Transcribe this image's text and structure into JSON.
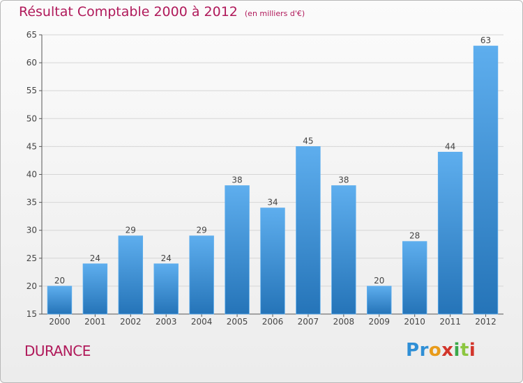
{
  "header": {
    "title": "Résultat Comptable 2000 à 2012",
    "unit": "(en milliers d'€)"
  },
  "commune": "DURANCE",
  "logo": {
    "text": "Proxiti",
    "letters": [
      {
        "ch": "P",
        "color": "#2f8fd6"
      },
      {
        "ch": "r",
        "color": "#2f8fd6"
      },
      {
        "ch": "o",
        "color": "#e89b1a"
      },
      {
        "ch": "x",
        "color": "#d2352b"
      },
      {
        "ch": "i",
        "color": "#3aa84a"
      },
      {
        "ch": "t",
        "color": "#8cc63f"
      },
      {
        "ch": "i",
        "color": "#d2352b"
      }
    ]
  },
  "colors": {
    "bar": "#3d93d9",
    "bar_light": "#5eaeee",
    "bar_dark": "#2574b8",
    "title": "#b0195a",
    "grid": "#d6d6d6",
    "axis_text": "#444444"
  },
  "chart_data": {
    "type": "bar",
    "title": "Résultat Comptable 2000 à 2012",
    "subtitle": "(en milliers d'€)",
    "xlabel": "",
    "ylabel": "",
    "categories": [
      "2000",
      "2001",
      "2002",
      "2003",
      "2004",
      "2005",
      "2006",
      "2007",
      "2008",
      "2009",
      "2010",
      "2011",
      "2012"
    ],
    "values": [
      20,
      24,
      29,
      24,
      29,
      38,
      34,
      45,
      38,
      20,
      28,
      44,
      63
    ],
    "ylim": [
      15,
      65
    ],
    "yticks": [
      15,
      20,
      25,
      30,
      35,
      40,
      45,
      50,
      55,
      60,
      65
    ],
    "grid": true,
    "data_labels": true
  }
}
